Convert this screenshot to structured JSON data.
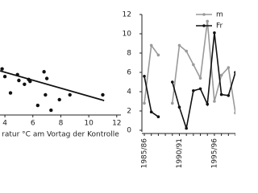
{
  "chart_data": [
    {
      "type": "scatter",
      "x_label": "ratur °C am Vortag der Kontrolle",
      "x": [
        4.0,
        4.9,
        5.0,
        4.4,
        5.7,
        5.8,
        5.4,
        6.35,
        6.8,
        7.0,
        6.9,
        7.3,
        7.9,
        8.65,
        11.0,
        3.8
      ],
      "values": [
        3.7,
        3.9,
        3.3,
        2.0,
        3.4,
        3.2,
        2.9,
        0.7,
        4.2,
        3.5,
        1.8,
        0.2,
        1.3,
        1.8,
        1.8,
        4.5
      ],
      "color": "#111111",
      "trend": {
        "x": [
          3.65,
          11.1
        ],
        "y": [
          4.3,
          1.2
        ]
      },
      "xlim": [
        3.65,
        12.3
      ],
      "ylim": [
        -0.3,
        10
      ],
      "xticks": [
        4,
        6,
        8,
        10,
        12
      ]
    },
    {
      "type": "line",
      "categories": [
        "1985/86",
        null,
        null,
        null,
        null,
        "1990/91",
        null,
        null,
        null,
        null,
        "1995/96",
        null,
        null,
        null
      ],
      "series": [
        {
          "name": "m",
          "color": "#9a9a9a",
          "values": [
            2.8,
            8.8,
            7.8,
            null,
            2.8,
            8.8,
            8.2,
            6.8,
            5.4,
            11.3,
            3.0,
            5.7,
            6.5,
            1.8
          ]
        },
        {
          "name": "Fr",
          "color": "#111111",
          "values": [
            5.6,
            1.9,
            1.4,
            null,
            5.0,
            2.4,
            0.2,
            4.1,
            4.3,
            2.7,
            10.1,
            3.7,
            3.6,
            6.0
          ]
        }
      ],
      "ylim": [
        0,
        12
      ],
      "yticks": [
        0,
        2,
        4,
        6,
        8,
        10,
        12
      ]
    }
  ]
}
